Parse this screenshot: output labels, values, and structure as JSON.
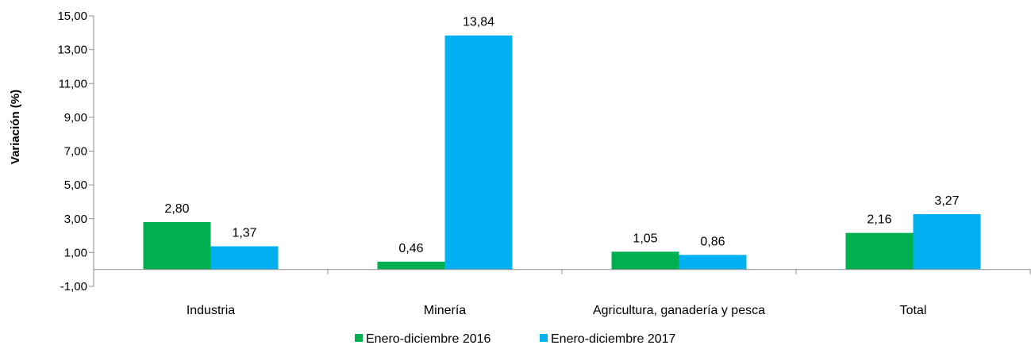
{
  "chart_data": {
    "type": "bar",
    "title": "",
    "xlabel": "",
    "ylabel": "Variación (%)",
    "ylim": [
      -1,
      15
    ],
    "yticks": [
      -1,
      1,
      3,
      5,
      7,
      9,
      11,
      13,
      15
    ],
    "ytick_labels": [
      "-1,00",
      "1,00",
      "3,00",
      "5,00",
      "7,00",
      "9,00",
      "11,00",
      "13,00",
      "15,00"
    ],
    "grid": false,
    "legend_position": "bottom",
    "categories": [
      "Industria",
      "Minería",
      "Agricultura, ganadería y pesca",
      "Total"
    ],
    "series": [
      {
        "name": "Enero-diciembre 2016",
        "color": "#00b050",
        "values": [
          2.8,
          0.46,
          1.05,
          2.16
        ],
        "labels": [
          "2,80",
          "0,46",
          "1,05",
          "2,16"
        ]
      },
      {
        "name": "Enero-diciembre 2017",
        "color": "#00b0f0",
        "values": [
          1.37,
          13.84,
          0.86,
          3.27
        ],
        "labels": [
          "1,37",
          "13,84",
          "0,86",
          "3,27"
        ]
      }
    ]
  }
}
